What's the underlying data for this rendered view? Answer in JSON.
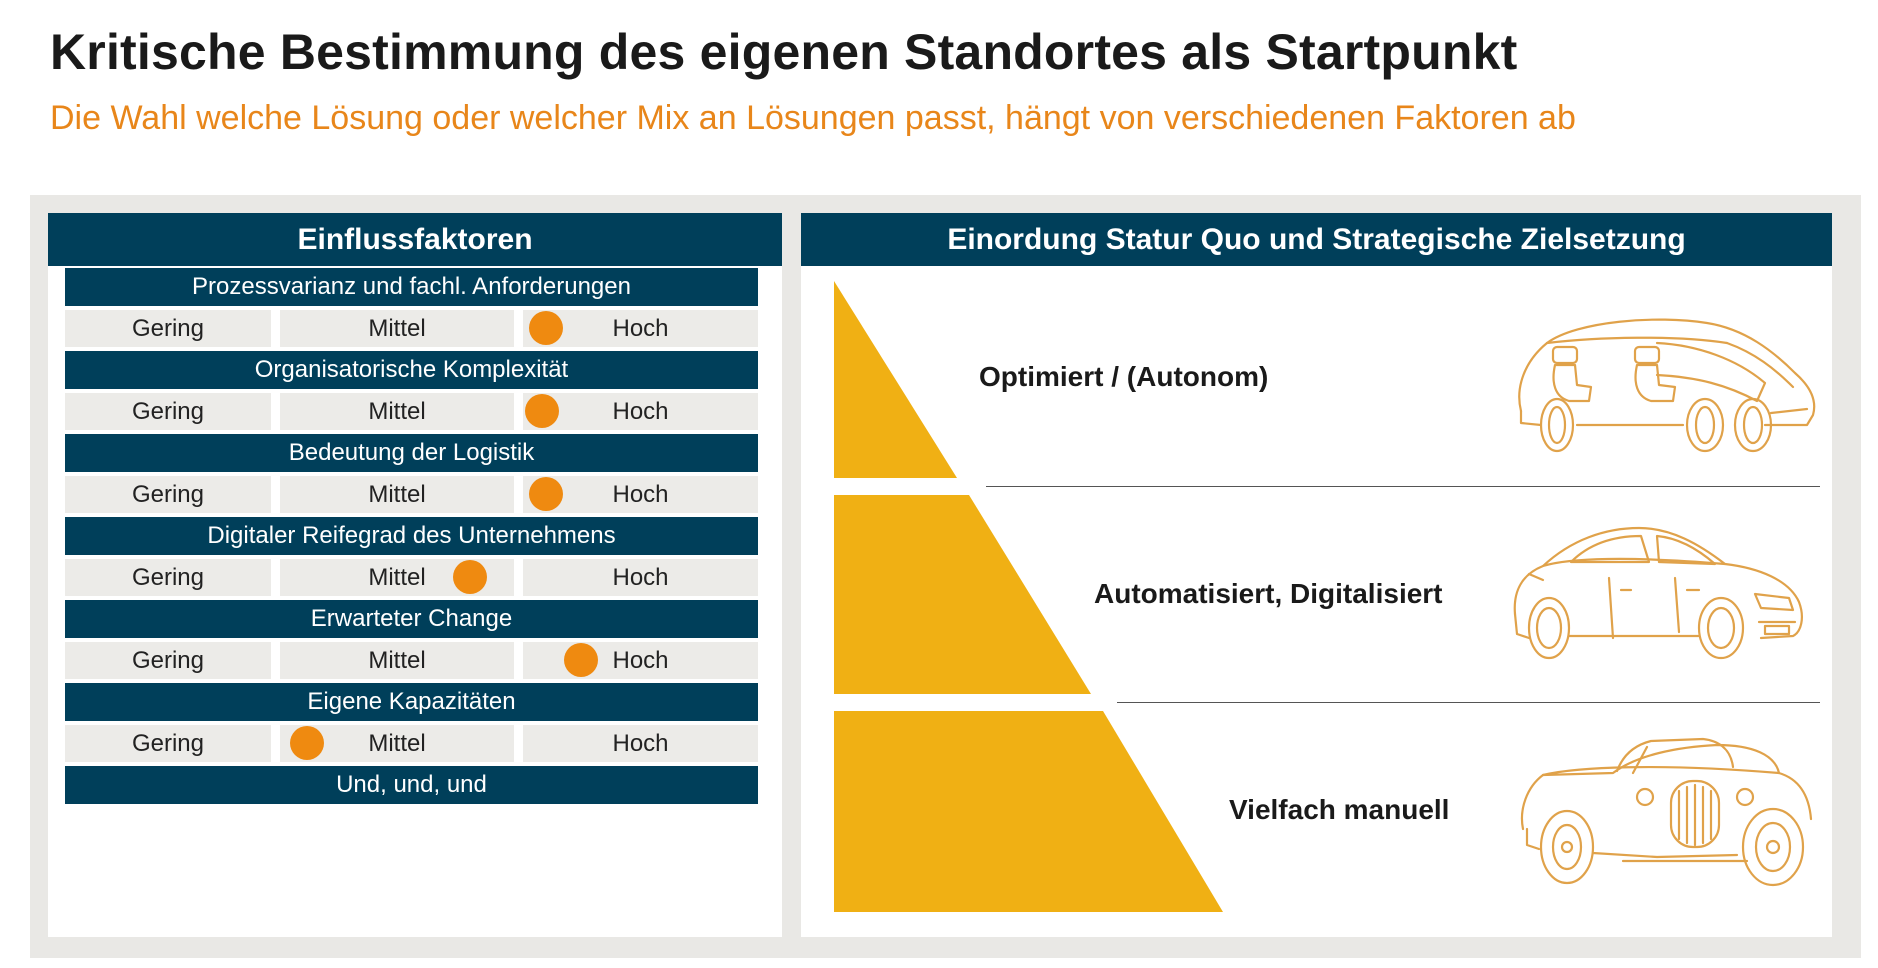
{
  "title": "Kritische Bestimmung des eigenen Standortes als Startpunkt",
  "subtitle": "Die Wahl welche Lösung oder welcher Mix an Lösungen passt, hängt von verschiedenen Faktoren ab",
  "left_panel": {
    "header": "Einflussfaktoren",
    "option_labels": {
      "low": "Gering",
      "mid": "Mittel",
      "high": "Hoch"
    },
    "factors": [
      {
        "label": "Prozessvarianz und fachl. Anforderungen",
        "marker": "high"
      },
      {
        "label": "Organisatorische Komplexität",
        "marker": "high"
      },
      {
        "label": "Bedeutung der Logistik",
        "marker": "high"
      },
      {
        "label": "Digitaler Reifegrad des Unternehmens",
        "marker": "mid"
      },
      {
        "label": "Erwarteter Change",
        "marker": "high"
      },
      {
        "label": "Eigene Kapazitäten",
        "marker": "mid"
      }
    ],
    "footer": "Und, und, und"
  },
  "right_panel": {
    "header": "Einordung Statur Quo und Strategische Zielsetzung",
    "levels": [
      {
        "label": "Optimiert / (Autonom)",
        "icon": "autonomous-car-icon"
      },
      {
        "label": "Automatisiert, Digitalisiert",
        "icon": "modern-car-icon"
      },
      {
        "label": "Vielfach manuell",
        "icon": "vintage-car-icon"
      }
    ]
  },
  "colors": {
    "navy": "#003f5a",
    "orange_text": "#e8861a",
    "marker": "#ef8a10",
    "pyramid": "#f0b014",
    "option_bg": "#ecebe8",
    "frame_bg": "#e9e8e5",
    "car_outline": "#e0a24a"
  }
}
